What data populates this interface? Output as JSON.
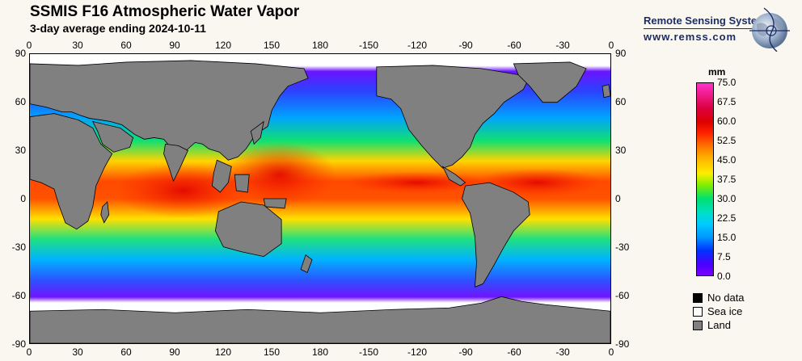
{
  "header": {
    "title": "SSMIS F16 Atmospheric Water Vapor",
    "subtitle": "3-day average ending 2024-10-11"
  },
  "logo": {
    "name": "Remote Sensing Systems",
    "url": "www.remss.com"
  },
  "axes": {
    "lon_labels": [
      "0",
      "30",
      "60",
      "90",
      "120",
      "150",
      "180",
      "-150",
      "-120",
      "-90",
      "-60",
      "-30",
      "0"
    ],
    "lat_labels": [
      "90",
      "60",
      "30",
      "0",
      "-30",
      "-60",
      "-90"
    ]
  },
  "colorbar": {
    "unit": "mm",
    "labels": [
      "75.0",
      "67.5",
      "60.0",
      "52.5",
      "45.0",
      "37.5",
      "30.0",
      "22.5",
      "15.0",
      "7.5",
      "0.0"
    ]
  },
  "legend": [
    {
      "label": "No data",
      "color": "#000000"
    },
    {
      "label": "Sea ice",
      "color": "#ffffff"
    },
    {
      "label": "Land",
      "color": "#808080"
    }
  ]
}
